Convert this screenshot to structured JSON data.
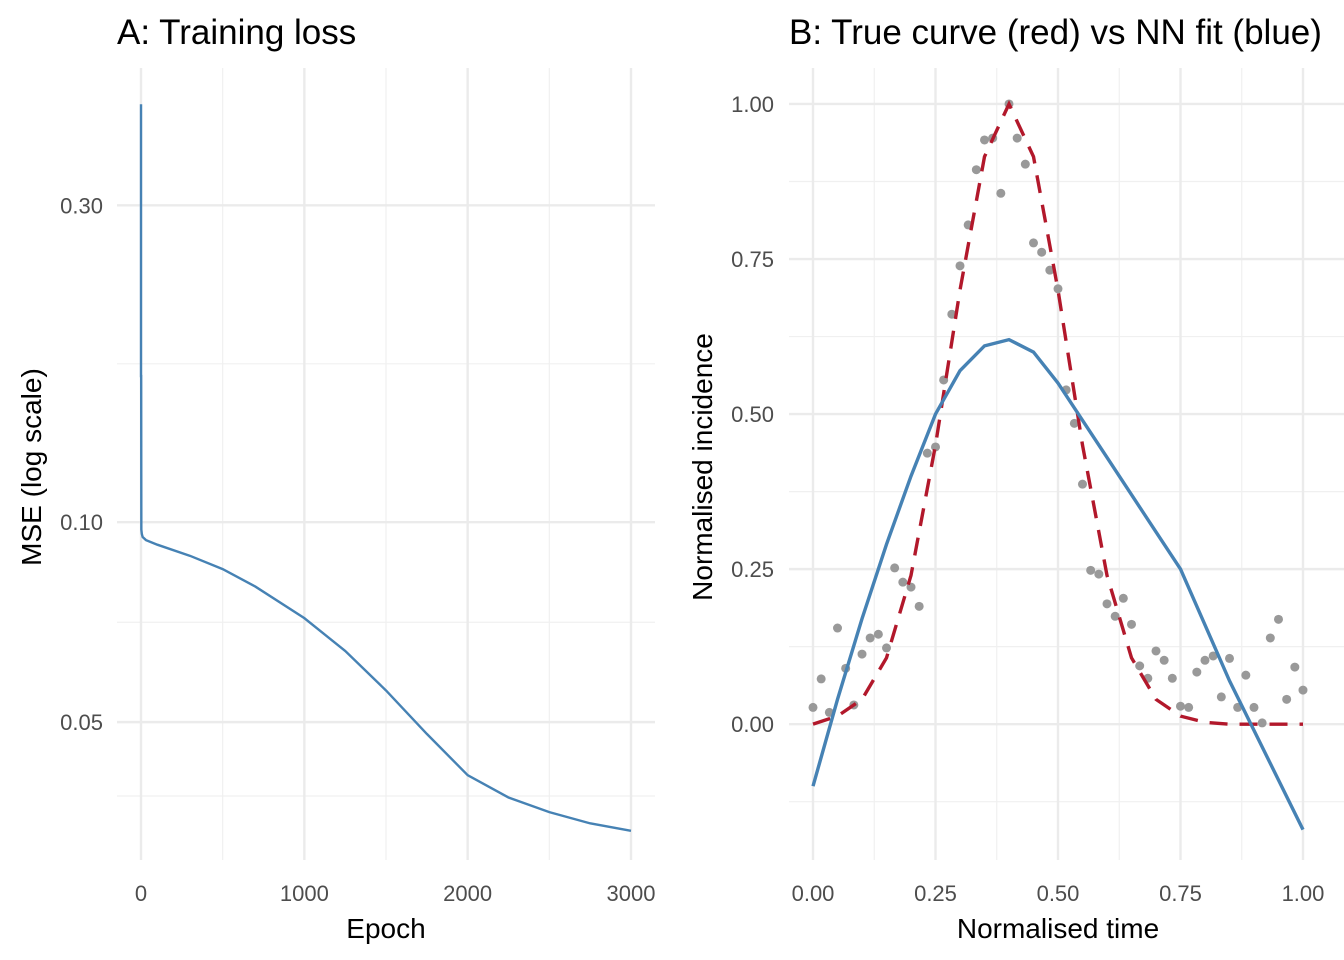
{
  "chart_data": [
    {
      "type": "line",
      "title": "A: Training loss",
      "xlabel": "Epoch",
      "ylabel": "MSE (log scale)",
      "yscale": "log",
      "xlim": [
        -147,
        3147
      ],
      "ylim": [
        0.031,
        0.483
      ],
      "xticks": [
        0,
        1000,
        2000,
        3000
      ],
      "xtick_labels": [
        "0",
        "1000",
        "2000",
        "3000"
      ],
      "yticks": [
        0.05,
        0.1,
        0.3
      ],
      "ytick_labels": [
        "0.05",
        "0.10",
        "0.30"
      ],
      "color": "#4682b4",
      "series": [
        {
          "name": "loss",
          "x": [
            0,
            0,
            1,
            2,
            5,
            10,
            30,
            100,
            300,
            500,
            700,
            1000,
            1250,
            1500,
            1750,
            2000,
            2250,
            2500,
            2750,
            3000
          ],
          "y": [
            0.426,
            0.166,
            0.166,
            0.0975,
            0.096,
            0.095,
            0.094,
            0.0925,
            0.089,
            0.085,
            0.08,
            0.0717,
            0.064,
            0.0558,
            0.048,
            0.0416,
            0.0385,
            0.0366,
            0.0352,
            0.0343
          ]
        }
      ]
    },
    {
      "type": "scatter+line",
      "title": "B: True curve (red) vs NN fit (blue)",
      "xlabel": "Normalised time",
      "ylabel": "Normalised incidence",
      "xlim": [
        -0.049,
        1.049
      ],
      "ylim": [
        -0.219,
        1.058
      ],
      "xticks": [
        0,
        0.25,
        0.5,
        0.75,
        1
      ],
      "xtick_labels": [
        "0.00",
        "0.25",
        "0.50",
        "0.75",
        "1.00"
      ],
      "yticks": [
        0,
        0.25,
        0.5,
        0.75,
        1
      ],
      "ytick_labels": [
        "0.00",
        "0.25",
        "0.50",
        "0.75",
        "1.00"
      ],
      "colors": {
        "points": "#999999",
        "true": "#b2182b",
        "fit": "#4682b4"
      },
      "points": {
        "y": [
          0.027,
          0.073,
          0.019,
          0.155,
          0.09,
          0.031,
          0.113,
          0.139,
          0.145,
          0.123,
          0.252,
          0.229,
          0.221,
          0.19,
          0.437,
          0.447,
          0.555,
          0.661,
          0.739,
          0.805,
          0.894,
          0.942,
          0.945,
          0.856,
          1.0,
          0.945,
          0.903,
          0.776,
          0.761,
          0.732,
          0.702,
          0.539,
          0.485,
          0.387,
          0.248,
          0.242,
          0.194,
          0.174,
          0.203,
          0.161,
          0.094,
          0.074,
          0.118,
          0.103,
          0.074,
          0.029,
          0.027,
          0.084,
          0.103,
          0.11,
          0.044,
          0.106,
          0.027,
          0.079,
          0.027,
          0.002,
          0.139,
          0.169,
          0.04,
          0.092,
          0.055
        ],
        "x_start": 0,
        "x_end": 1
      },
      "true_curve": {
        "x": [
          0,
          0.05,
          0.1,
          0.15,
          0.2,
          0.25,
          0.3,
          0.35,
          0.4,
          0.45,
          0.5,
          0.55,
          0.6,
          0.65,
          0.7,
          0.75,
          0.8,
          0.85,
          0.9,
          0.95,
          1
        ],
        "y": [
          0,
          0.013,
          0.04,
          0.107,
          0.24,
          0.45,
          0.7,
          0.915,
          1,
          0.915,
          0.7,
          0.45,
          0.24,
          0.107,
          0.04,
          0.013,
          0.003,
          0,
          0,
          0,
          0
        ]
      },
      "nn_fit": {
        "x": [
          0,
          0.05,
          0.1,
          0.15,
          0.2,
          0.25,
          0.3,
          0.35,
          0.4,
          0.45,
          0.5,
          0.55,
          0.6,
          0.65,
          0.7,
          0.75,
          0.8,
          0.85,
          0.9,
          0.95,
          1
        ],
        "y": [
          -0.1,
          0.04,
          0.17,
          0.29,
          0.4,
          0.5,
          0.57,
          0.61,
          0.62,
          0.6,
          0.55,
          0.49,
          0.43,
          0.37,
          0.31,
          0.25,
          0.16,
          0.07,
          -0.01,
          -0.09,
          -0.17
        ]
      }
    }
  ]
}
